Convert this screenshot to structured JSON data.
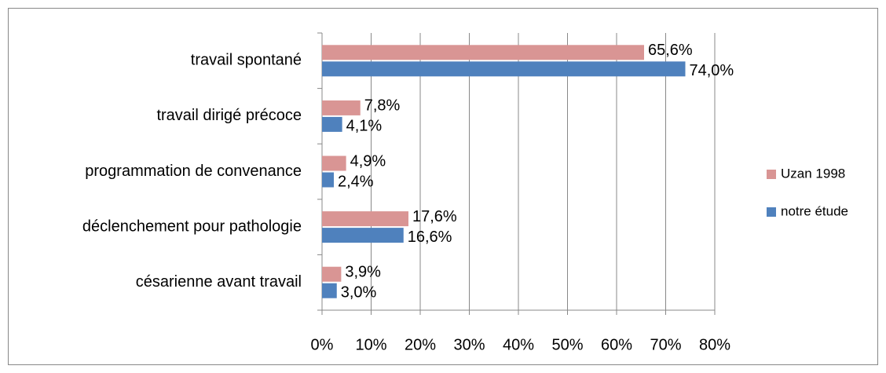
{
  "chart_data": {
    "type": "hbar",
    "categories": [
      "travail spontané",
      "travail dirigé précoce",
      "programmation de convenance",
      "déclenchement pour pathologie",
      "césarienne avant travail"
    ],
    "series": [
      {
        "name": "Uzan 1998",
        "color": "#d99594",
        "values": [
          65.6,
          7.8,
          4.9,
          17.6,
          3.9
        ],
        "value_labels": [
          "65,6%",
          "7,8%",
          "4,9%",
          "17,6%",
          "3,9%"
        ]
      },
      {
        "name": "notre étude",
        "color": "#4f81bd",
        "values": [
          74.0,
          4.1,
          2.4,
          16.6,
          3.0
        ],
        "value_labels": [
          "74,0%",
          "4,1%",
          "2,4%",
          "16,6%",
          "3,0%"
        ]
      }
    ],
    "xlim": [
      0,
      80
    ],
    "xticks": [
      {
        "value": 0,
        "label": "0%"
      },
      {
        "value": 10,
        "label": "10%"
      },
      {
        "value": 20,
        "label": "20%"
      },
      {
        "value": 30,
        "label": "30%"
      },
      {
        "value": 40,
        "label": "40%"
      },
      {
        "value": 50,
        "label": "50%"
      },
      {
        "value": 60,
        "label": "60%"
      },
      {
        "value": 70,
        "label": "70%"
      },
      {
        "value": 80,
        "label": "80%"
      }
    ],
    "grid": true,
    "legend": "right"
  }
}
